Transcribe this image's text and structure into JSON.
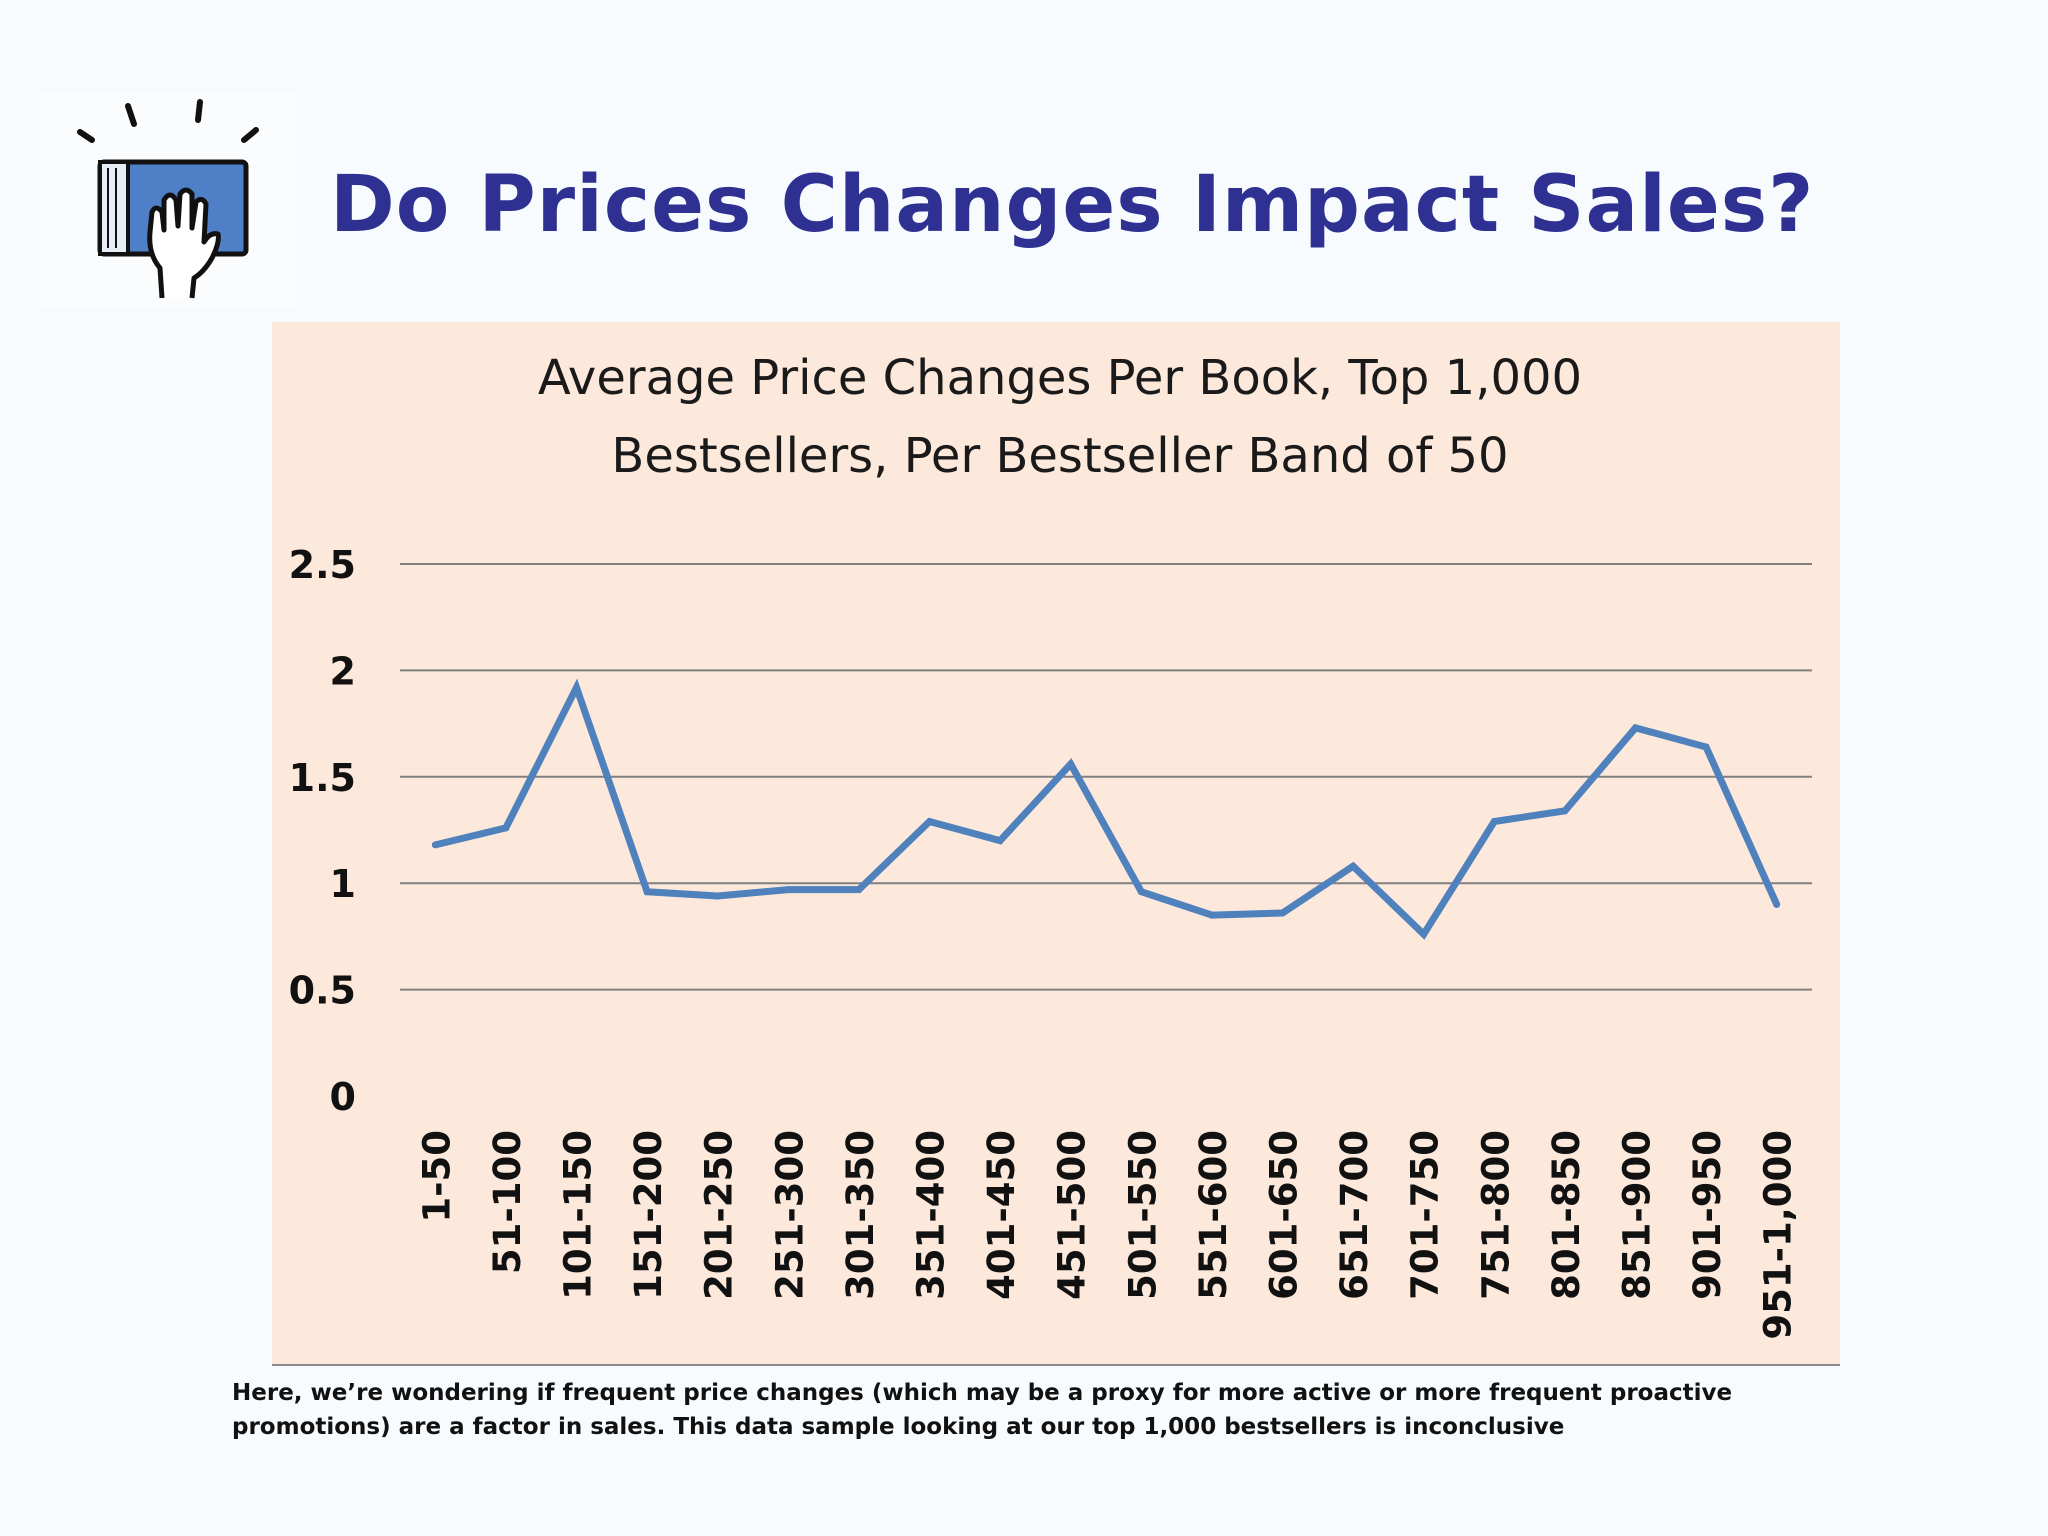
{
  "slide": {
    "title": "Do Prices Changes Impact Sales?",
    "caption_line1": "Here, we’re wondering if frequent price changes (which may be a proxy for more active or more frequent proactive",
    "caption_line2": "promotions) are a factor in sales.  This data sample looking at our top 1,000 bestsellers is inconclusive",
    "logo_icon": "book-hand-icon",
    "title_color": "#2e3192"
  },
  "chart_data": {
    "type": "line",
    "title_line1": "Average Price Changes Per Book, Top 1,000",
    "title_line2": "Bestsellers, Per Bestseller Band of 50",
    "categories": [
      "1-50",
      "51-100",
      "101-150",
      "151-200",
      "201-250",
      "251-300",
      "301-350",
      "351-400",
      "401-450",
      "451-500",
      "501-550",
      "551-600",
      "601-650",
      "651-700",
      "701-750",
      "751-800",
      "801-850",
      "851-900",
      "901-950",
      "951-1,000"
    ],
    "values": [
      1.18,
      1.26,
      1.92,
      0.96,
      0.94,
      0.97,
      0.97,
      1.29,
      1.2,
      1.56,
      0.96,
      0.85,
      0.86,
      1.08,
      0.76,
      1.29,
      1.34,
      1.73,
      1.64,
      0.9
    ],
    "yticks": [
      "0",
      "0.5",
      "1",
      "1.5",
      "2",
      "2.5"
    ],
    "ylim": [
      0,
      2.5
    ],
    "grid": true,
    "legend": "none",
    "line_color": "#4f81bd",
    "background_color": "#fde9dc"
  }
}
